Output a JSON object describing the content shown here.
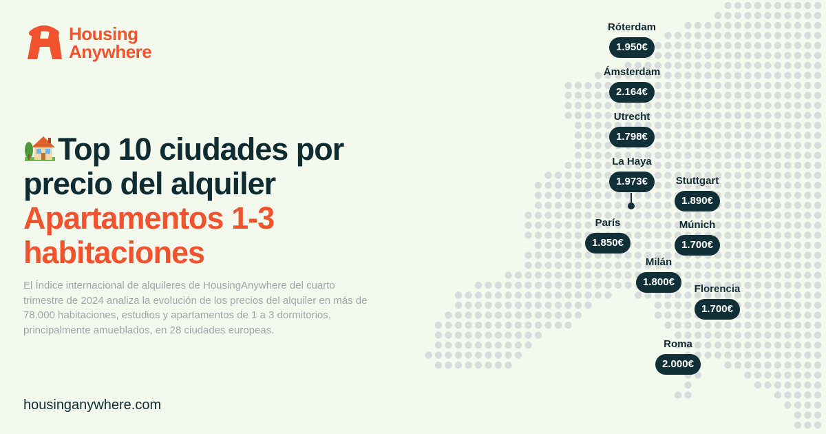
{
  "brand": {
    "line1": "Housing",
    "line2": "Anywhere"
  },
  "headline": {
    "line1": "Top 10 ciudades por",
    "line2": "precio del alquiler",
    "accent_line1": "Apartamentos 1-3",
    "accent_line2": "habitaciones"
  },
  "description": "El Índice internacional de alquileres de HousingAnywhere del cuarto trimestre de 2024 analiza la evolución de los precios del alquiler en más de 78.000 habitaciones, estudios y apartamentos de 1 a 3 dormitorios, principalmente amueblados, en 28 ciudades europeas.",
  "site_url": "housinganywhere.com",
  "cities": [
    {
      "name": "Róterdam",
      "price": "1.950€"
    },
    {
      "name": "Ámsterdam",
      "price": "2.164€"
    },
    {
      "name": "Utrecht",
      "price": "1.798€"
    },
    {
      "name": "La Haya",
      "price": "1.973€"
    },
    {
      "name": "Stuttgart",
      "price": "1.890€"
    },
    {
      "name": "París",
      "price": "1.850€"
    },
    {
      "name": "Múnich",
      "price": "1.700€"
    },
    {
      "name": "Milán",
      "price": "1.800€"
    },
    {
      "name": "Florencia",
      "price": "1.700€"
    },
    {
      "name": "Roma",
      "price": "2.000€"
    }
  ],
  "colors": {
    "background": "#f4f9ee",
    "accent": "#f0532d",
    "dark": "#0f2c33",
    "pill": "#102f36",
    "map_dot": "#d9dcdc",
    "body_text": "#9da6a8"
  },
  "icons": {
    "logo": "housinganywhere-logo-icon",
    "headline": "house-with-garden-icon"
  }
}
